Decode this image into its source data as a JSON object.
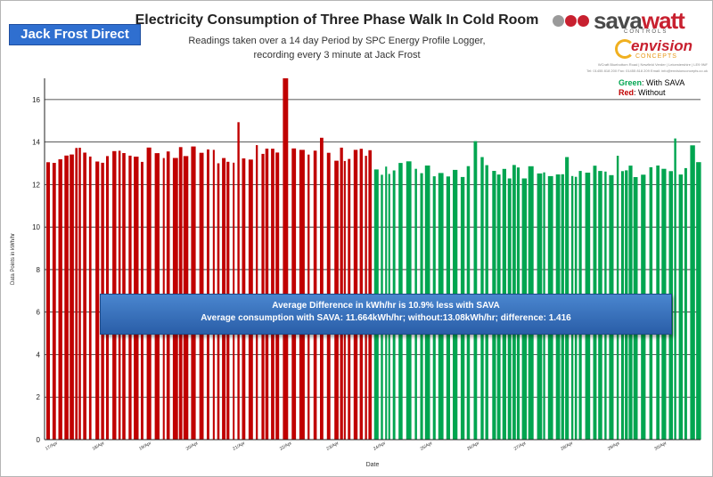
{
  "header": {
    "badge": "Jack Frost Direct",
    "title": "Electricity Consumption  of Three Phase Walk In Cold Room",
    "subtitle_line1": "Readings taken over a 14 day Period by SPC Energy Profile Logger,",
    "subtitle_line2": "recording  every 3 minute at Jack Frost"
  },
  "logos": {
    "savawatt_prefix": "sava",
    "savawatt_suffix": "watt",
    "controls": "CONTROLS",
    "envision": "envision",
    "concepts": "CONCEPTS",
    "address_line1": "WCraft Bluebottom Road | Newfield Verder | Leicestershire | LE9 9NF",
    "address_line2": "Tel: 01455 818 200  Fax: 01455 818 209  Email: info@envisionconcepts.co.uk",
    "colors": {
      "savawatt_red": "#c8202f",
      "savawatt_grey": "#4a4a4a",
      "envision_red": "#c8202f",
      "concepts_orange": "#e89a1b",
      "dot_grey": "#9a9a9a",
      "dot_red": "#c8202f"
    }
  },
  "annotation": {
    "line1": "Average Difference in kWh/hr is 10.9% less with SAVA",
    "line2": "Average consumption with SAVA: 11.664kWh/hr; without:13.08kWh/hr; difference: 1.416"
  },
  "chart_data": {
    "type": "bar",
    "xlabel": "Date",
    "ylabel": "Data Points in kWh/hr",
    "ylim": [
      0,
      17
    ],
    "yticks": [
      0,
      2,
      4,
      6,
      8,
      10,
      12,
      14,
      16
    ],
    "grid": "horizontal",
    "legend_placement": "top-right",
    "categories": [
      "17/Apr",
      "18/Apr",
      "19/Apr",
      "20/Apr",
      "21/Apr",
      "22/Apr",
      "23/Apr",
      "24/Apr",
      "25/Apr",
      "26/Apr",
      "27/Apr",
      "28/Apr",
      "29/Apr",
      "30/Apr"
    ],
    "series": [
      {
        "name": "Without",
        "legend_color": "Red",
        "legend_label": ": Without",
        "color": "#c00000",
        "average": 13.08,
        "typical_peak": 13.5,
        "max_peak": 17.0
      },
      {
        "name": "With SAVA",
        "legend_color": "Green",
        "legend_label": ": With SAVA",
        "color": "#00a550",
        "average": 11.664,
        "typical_peak": 12.8,
        "max_peak": 14.2
      }
    ],
    "switch_date": "24/Apr"
  }
}
